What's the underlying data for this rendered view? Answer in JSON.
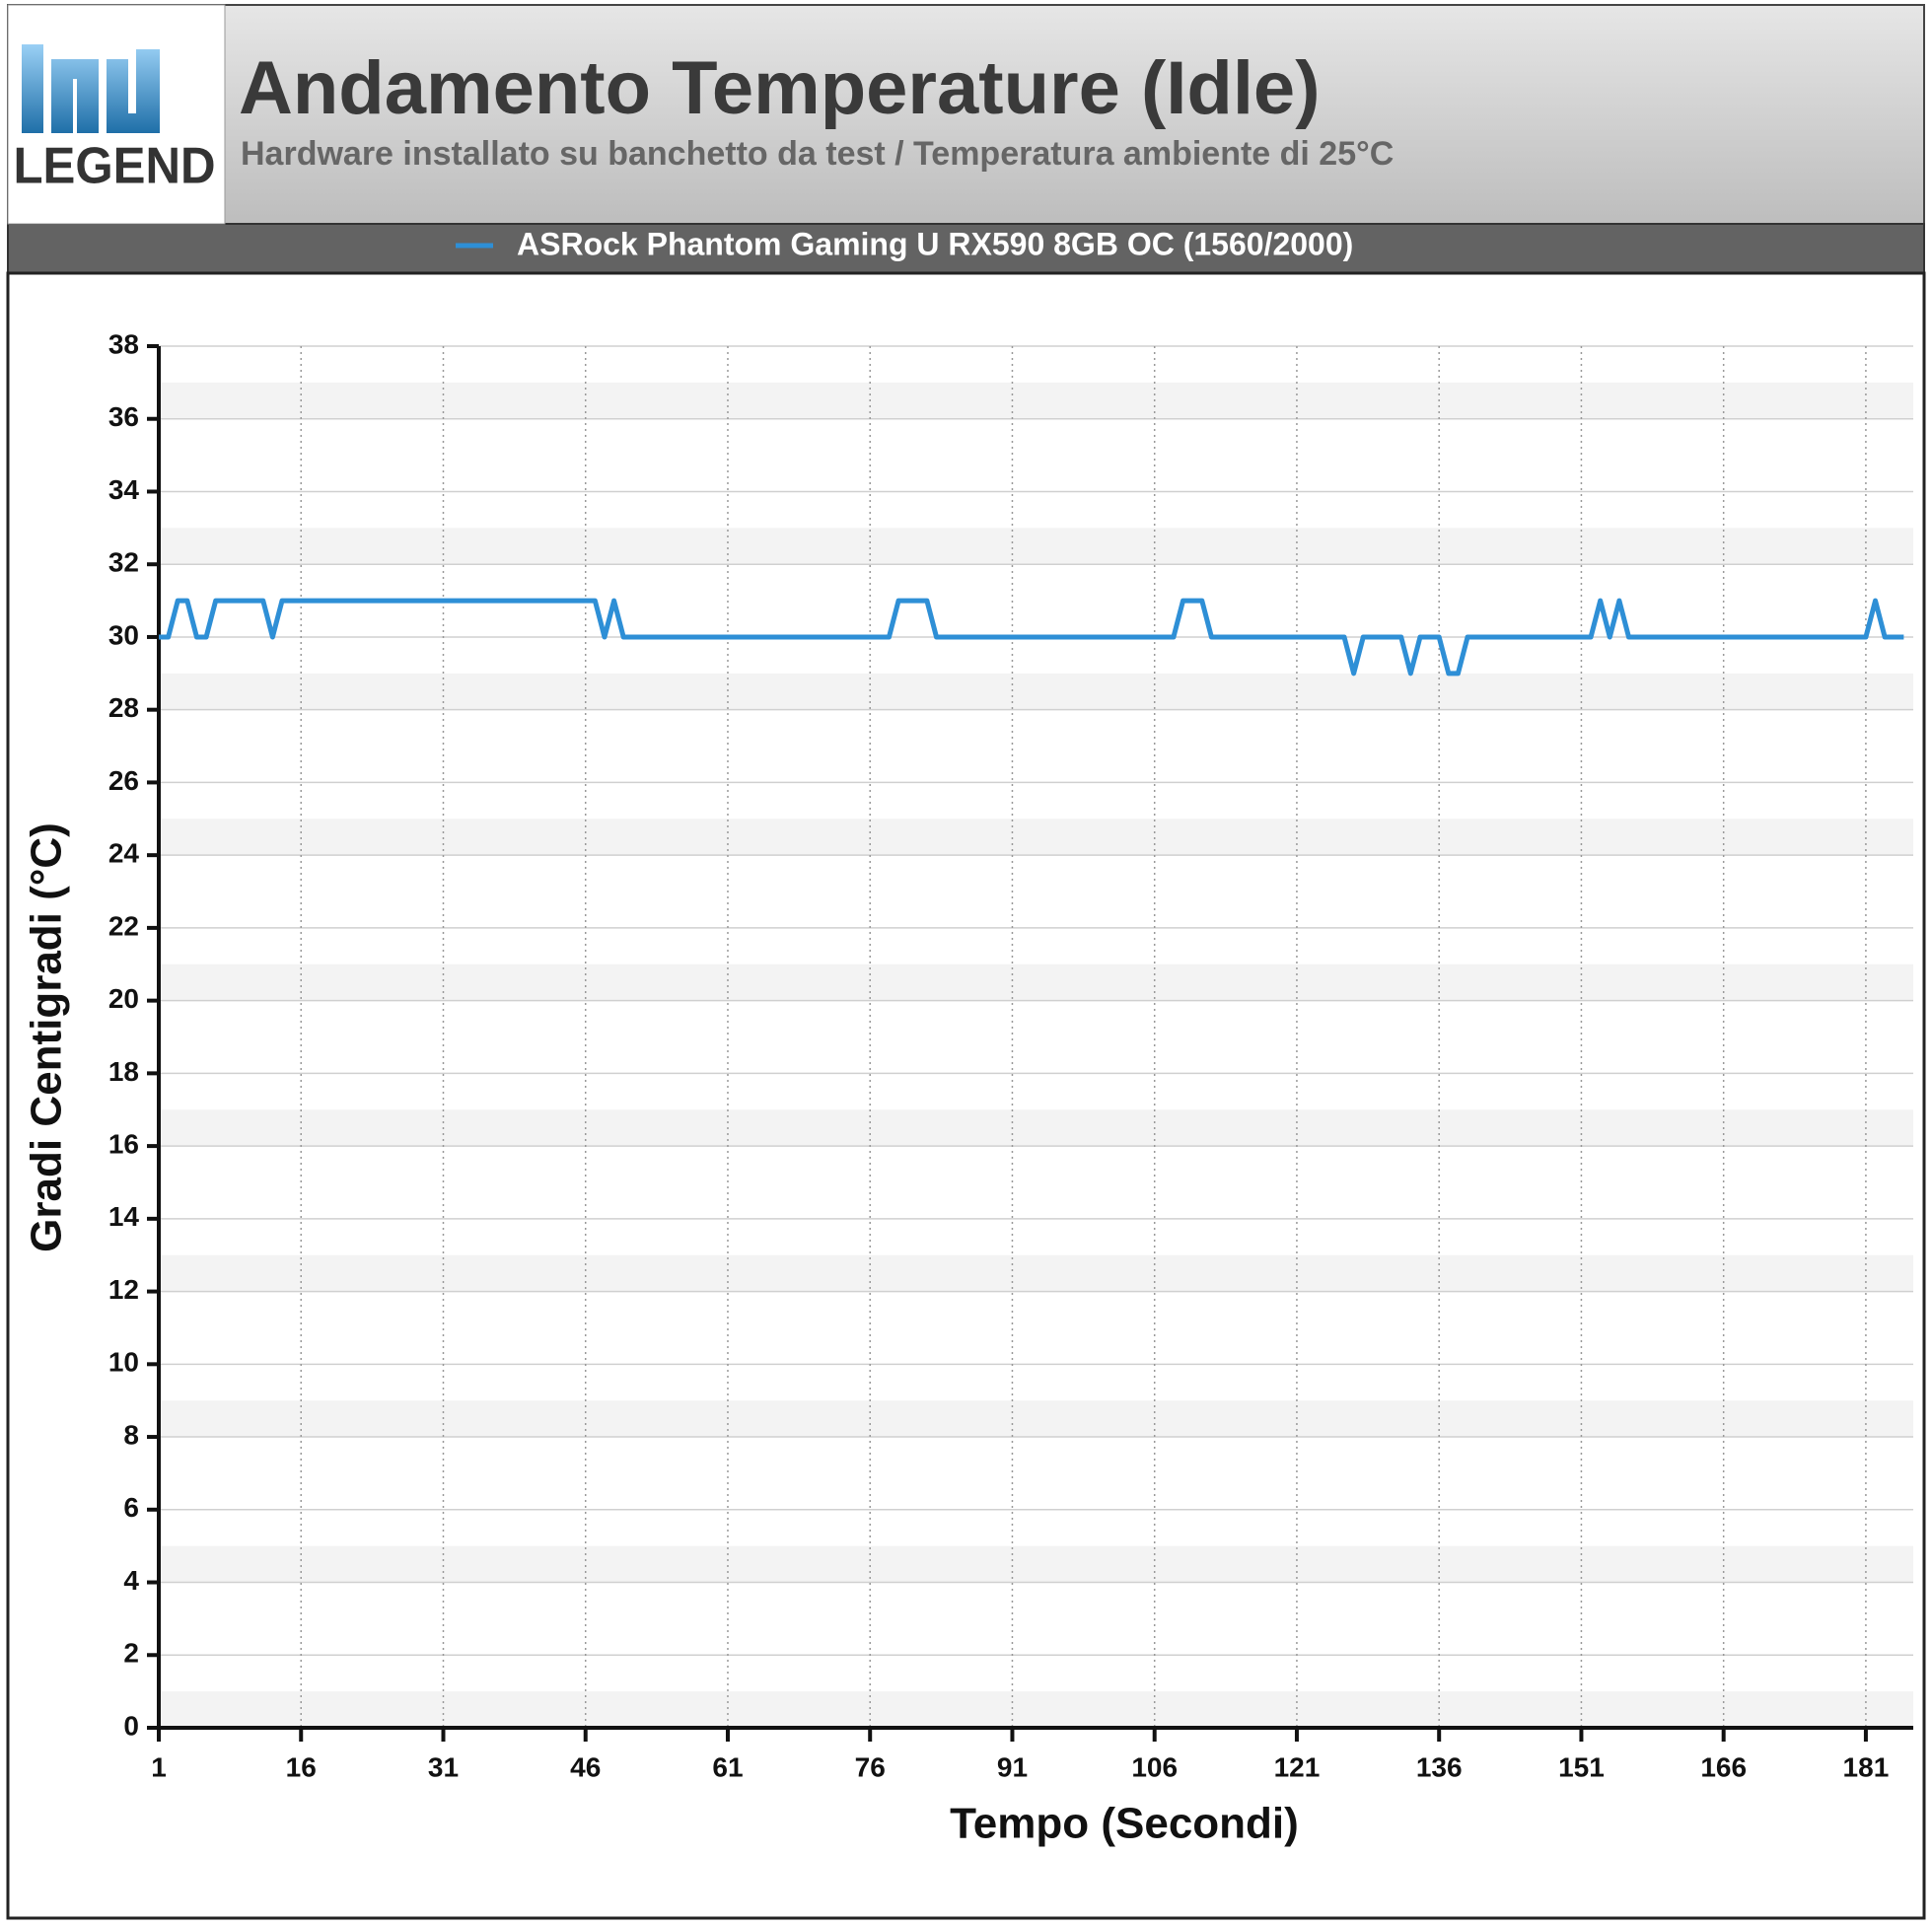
{
  "logo": {
    "text": "LEGEND"
  },
  "chart_data": {
    "type": "line",
    "title": "Andamento Temperature (Idle)",
    "subtitle": "Hardware installato su banchetto da test / Temperatura ambiente di 25°C",
    "x_label": "Tempo (Secondi)",
    "y_label": "Gradi Centigradi (°C)",
    "x": [
      1,
      2,
      3,
      4,
      5,
      6,
      7,
      8,
      9,
      10,
      11,
      12,
      13,
      14,
      15,
      16,
      17,
      18,
      19,
      20,
      21,
      22,
      23,
      24,
      25,
      26,
      27,
      28,
      29,
      30,
      31,
      32,
      33,
      34,
      35,
      36,
      37,
      38,
      39,
      40,
      41,
      42,
      43,
      44,
      45,
      46,
      47,
      48,
      49,
      50,
      51,
      52,
      53,
      54,
      55,
      56,
      57,
      58,
      59,
      60,
      61,
      62,
      63,
      64,
      65,
      66,
      67,
      68,
      69,
      70,
      71,
      72,
      73,
      74,
      75,
      76,
      77,
      78,
      79,
      80,
      81,
      82,
      83,
      84,
      85,
      86,
      87,
      88,
      89,
      90,
      91,
      92,
      93,
      94,
      95,
      96,
      97,
      98,
      99,
      100,
      101,
      102,
      103,
      104,
      105,
      106,
      107,
      108,
      109,
      110,
      111,
      112,
      113,
      114,
      115,
      116,
      117,
      118,
      119,
      120,
      121,
      122,
      123,
      124,
      125,
      126,
      127,
      128,
      129,
      130,
      131,
      132,
      133,
      134,
      135,
      136,
      137,
      138,
      139,
      140,
      141,
      142,
      143,
      144,
      145,
      146,
      147,
      148,
      149,
      150,
      151,
      152,
      153,
      154,
      155,
      156,
      157,
      158,
      159,
      160,
      161,
      162,
      163,
      164,
      165,
      166,
      167,
      168,
      169,
      170,
      171,
      172,
      173,
      174,
      175,
      176,
      177,
      178,
      179,
      180,
      181,
      182,
      183,
      184,
      185
    ],
    "series": [
      {
        "name": "ASRock Phantom Gaming U RX590 8GB OC (1560/2000)",
        "color": "#2e8fd6",
        "values": [
          30,
          30,
          31,
          31,
          30,
          30,
          31,
          31,
          31,
          31,
          31,
          31,
          30,
          31,
          31,
          31,
          31,
          31,
          31,
          31,
          31,
          31,
          31,
          31,
          31,
          31,
          31,
          31,
          31,
          31,
          31,
          31,
          31,
          31,
          31,
          31,
          31,
          31,
          31,
          31,
          31,
          31,
          31,
          31,
          31,
          31,
          31,
          30,
          31,
          30,
          30,
          30,
          30,
          30,
          30,
          30,
          30,
          30,
          30,
          30,
          30,
          30,
          30,
          30,
          30,
          30,
          30,
          30,
          30,
          30,
          30,
          30,
          30,
          30,
          30,
          30,
          30,
          30,
          31,
          31,
          31,
          31,
          30,
          30,
          30,
          30,
          30,
          30,
          30,
          30,
          30,
          30,
          30,
          30,
          30,
          30,
          30,
          30,
          30,
          30,
          30,
          30,
          30,
          30,
          30,
          30,
          30,
          30,
          31,
          31,
          31,
          30,
          30,
          30,
          30,
          30,
          30,
          30,
          30,
          30,
          30,
          30,
          30,
          30,
          30,
          30,
          29,
          30,
          30,
          30,
          30,
          30,
          29,
          30,
          30,
          30,
          29,
          29,
          30,
          30,
          30,
          30,
          30,
          30,
          30,
          30,
          30,
          30,
          30,
          30,
          30,
          30,
          31,
          30,
          31,
          30,
          30,
          30,
          30,
          30,
          30,
          30,
          30,
          30,
          30,
          30,
          30,
          30,
          30,
          30,
          30,
          30,
          30,
          30,
          30,
          30,
          30,
          30,
          30,
          30,
          30,
          31,
          30,
          30,
          30
        ]
      }
    ],
    "xlim": [
      1,
      186
    ],
    "ylim": [
      0,
      38
    ],
    "xticks": [
      1,
      16,
      31,
      46,
      61,
      76,
      91,
      106,
      121,
      136,
      151,
      166,
      181
    ],
    "yticks": [
      0,
      2,
      4,
      6,
      8,
      10,
      12,
      14,
      16,
      18,
      20,
      22,
      24,
      26,
      28,
      30,
      32,
      34,
      36,
      38
    ],
    "grid": true
  }
}
